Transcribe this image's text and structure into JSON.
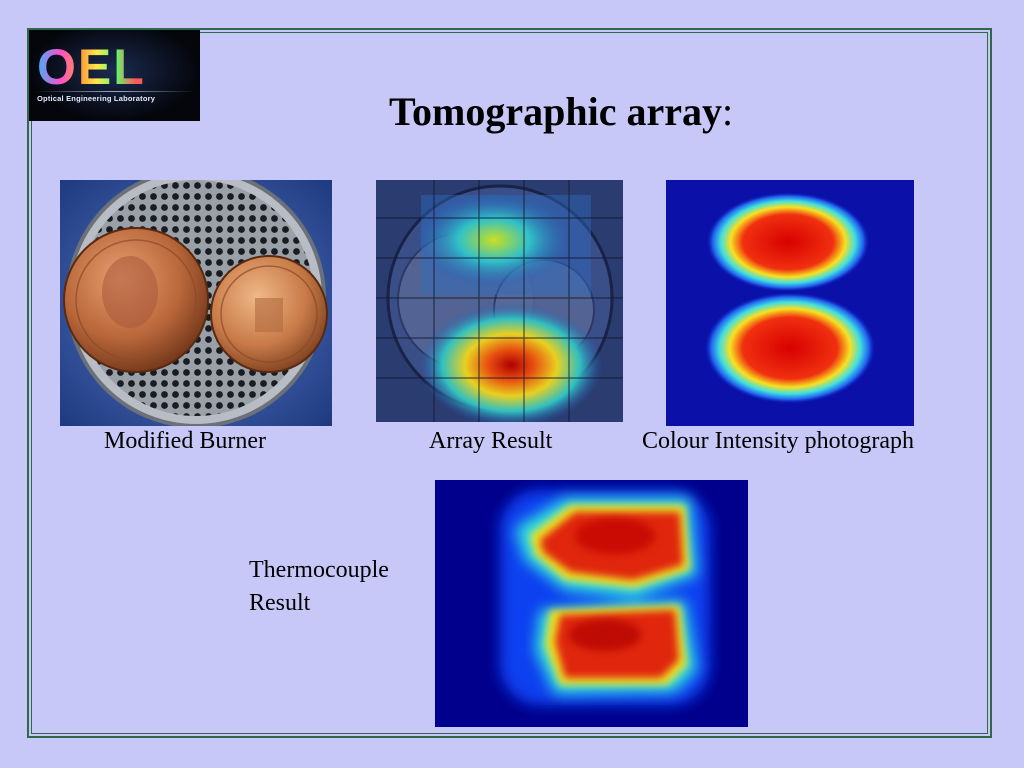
{
  "slide": {
    "title": "Tomographic array",
    "title_suffix": ":",
    "logo": {
      "letters": "OEL",
      "subtitle": "Optical Engineering Laboratory"
    },
    "images": [
      {
        "caption": "Modified Burner"
      },
      {
        "caption": "Array Result"
      },
      {
        "caption": "Colour Intensity photograph"
      },
      {
        "caption_line1": "Thermocouple",
        "caption_line2": "Result"
      }
    ],
    "colors": {
      "background": "#c8c8f8",
      "frame": "#2e6a4a",
      "heatmap_low": "#00008c",
      "heatmap_high": "#d40000"
    }
  }
}
